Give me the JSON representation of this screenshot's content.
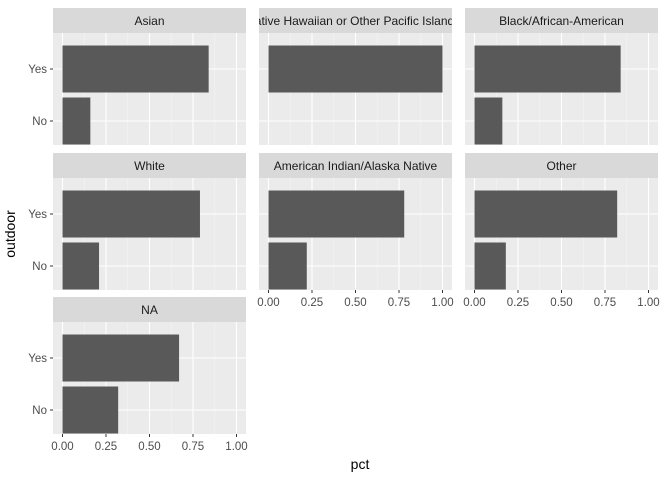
{
  "chart_data": {
    "type": "bar",
    "orientation": "horizontal",
    "xlabel": "pct",
    "ylabel": "outdoor",
    "xlim": [
      0,
      1
    ],
    "x_ticks": [
      "0.00",
      "0.25",
      "0.50",
      "0.75",
      "1.00"
    ],
    "categories": [
      "Yes",
      "No"
    ],
    "bar_color": "#595959",
    "panel_color": "#ebebeb",
    "strip_color": "#d9d9d9",
    "grid": true,
    "facets": [
      {
        "label": "Asian",
        "values": [
          0.84,
          0.16
        ]
      },
      {
        "label": "Native Hawaiian or Other Pacific Islander",
        "values": [
          1.0,
          0.0
        ]
      },
      {
        "label": "Black/African-American",
        "values": [
          0.84,
          0.16
        ]
      },
      {
        "label": "White",
        "values": [
          0.79,
          0.21
        ]
      },
      {
        "label": "American Indian/Alaska Native",
        "values": [
          0.78,
          0.22
        ]
      },
      {
        "label": "Other",
        "values": [
          0.82,
          0.18
        ]
      },
      {
        "label": "NA",
        "values": [
          0.67,
          0.32
        ]
      }
    ]
  }
}
